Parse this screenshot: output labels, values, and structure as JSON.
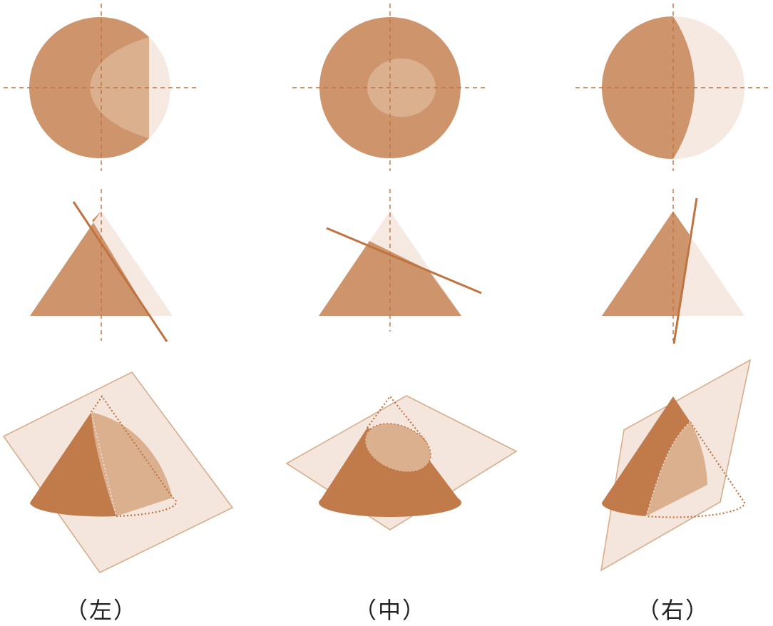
{
  "captions": {
    "left": "（左）",
    "middle": "（中）",
    "right": "（右）"
  },
  "colors": {
    "solid": "#CE956C",
    "light": "#DBB08E",
    "pale": "#F5E9E1",
    "deep": "#C17A4A",
    "line": "#BF7340",
    "plane": "#F3E4DA",
    "plane_edge": "#D6AE8C",
    "caption_text": "#222222"
  }
}
